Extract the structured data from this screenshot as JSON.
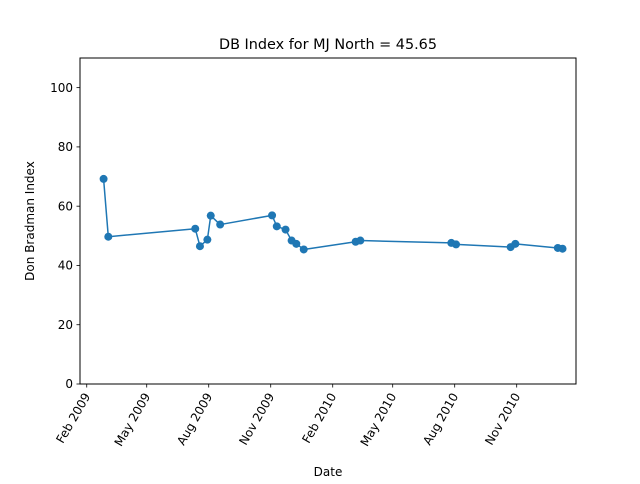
{
  "chart_data": {
    "type": "line",
    "title": "DB Index for MJ North = 45.65",
    "xlabel": "Date",
    "ylabel": "Don Bradman Index",
    "ylim": [
      0,
      110
    ],
    "yticks": [
      0,
      20,
      40,
      60,
      80,
      100
    ],
    "xlim": [
      "2009-01-22",
      "2011-01-28"
    ],
    "xticks": [
      {
        "date": "2009-02-01",
        "label": "Feb 2009"
      },
      {
        "date": "2009-05-01",
        "label": "May 2009"
      },
      {
        "date": "2009-08-01",
        "label": "Aug 2009"
      },
      {
        "date": "2009-11-01",
        "label": "Nov 2009"
      },
      {
        "date": "2010-02-01",
        "label": "Feb 2010"
      },
      {
        "date": "2010-05-01",
        "label": "May 2010"
      },
      {
        "date": "2010-08-01",
        "label": "Aug 2010"
      },
      {
        "date": "2010-11-01",
        "label": "Nov 2010"
      }
    ],
    "grid": false,
    "series": [
      {
        "name": "DB Index",
        "color": "#1f77b4",
        "x": [
          "2009-02-26",
          "2009-03-05",
          "2009-07-12",
          "2009-07-19",
          "2009-07-30",
          "2009-08-04",
          "2009-08-18",
          "2009-11-03",
          "2009-11-10",
          "2009-11-23",
          "2009-12-02",
          "2009-12-09",
          "2009-12-20",
          "2010-03-07",
          "2010-03-14",
          "2010-07-27",
          "2010-08-03",
          "2010-10-23",
          "2010-10-30",
          "2011-01-01",
          "2011-01-08"
        ],
        "values": [
          69.2,
          49.7,
          52.4,
          46.5,
          48.7,
          56.8,
          53.8,
          56.9,
          53.2,
          52.1,
          48.4,
          47.3,
          45.4,
          48.0,
          48.4,
          47.6,
          47.1,
          46.2,
          47.3,
          45.9,
          45.65
        ]
      }
    ]
  }
}
